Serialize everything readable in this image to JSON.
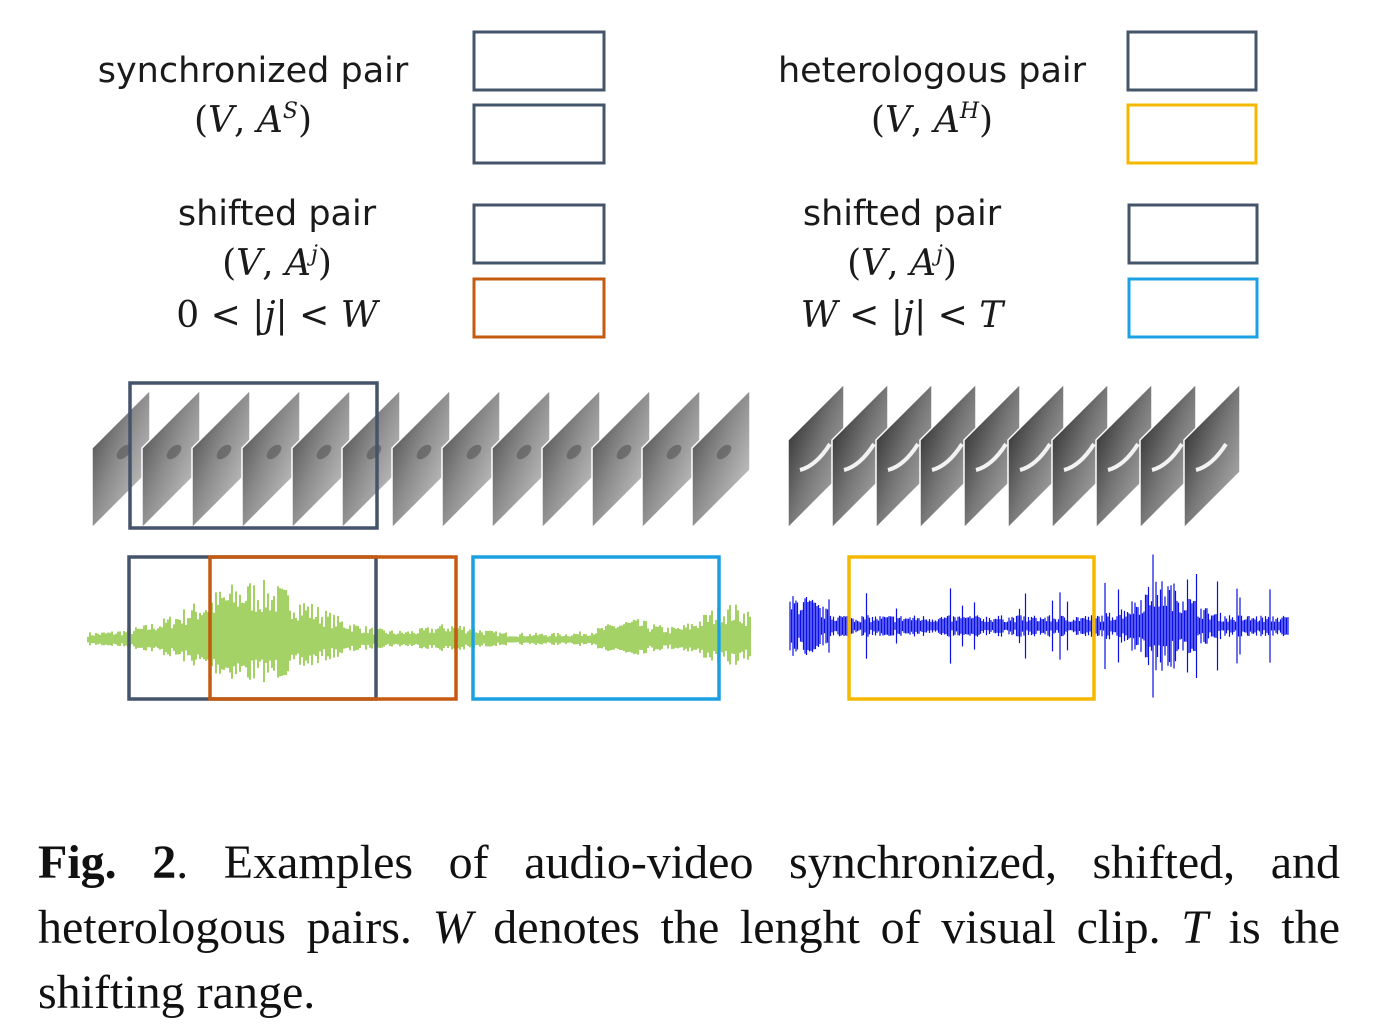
{
  "legend": {
    "sync": {
      "title": "synchronized pair",
      "v": "V",
      "a": "A",
      "sup": "S"
    },
    "hetero": {
      "title": "heterologous pair",
      "v": "V",
      "a": "A",
      "sup": "H"
    },
    "shift_near": {
      "title": "shifted pair",
      "v": "V",
      "a": "A",
      "sup": "j",
      "cond_left": "0",
      "cond_mid": "j",
      "cond_right": "W"
    },
    "shift_far": {
      "title": "shifted pair",
      "v": "V",
      "a": "A",
      "sup": "j",
      "cond_left": "W",
      "cond_mid": "j",
      "cond_right": "T"
    }
  },
  "colors": {
    "sync_box": "#44546a",
    "shift_near_box": "#c55a11",
    "shift_far_box": "#1ba1e2",
    "hetero_box": "#f5b800",
    "waveform_left": "#8dc63f",
    "waveform_right": "#0a10e6"
  },
  "caption": {
    "label": "Fig. 2",
    "t1": ".  Examples of audio-video synchronized, shifted, and heterologous pairs. ",
    "w": "W",
    "t2": " denotes the lenght of visual clip. ",
    "t": "T",
    "t3": " is the shifting range."
  }
}
